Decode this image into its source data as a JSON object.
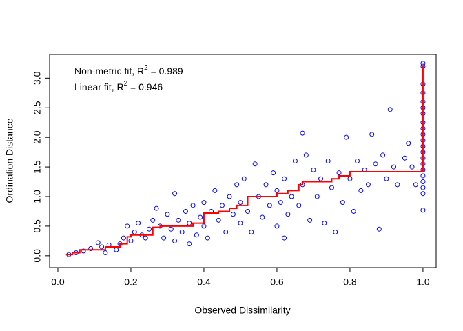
{
  "chart_data": {
    "type": "scatter",
    "xlabel": "Observed Dissimilarity",
    "ylabel": "Ordination Distance",
    "annotations": [
      {
        "text": "Non-metric fit, R",
        "superscript": "2",
        "rest": " = 0.989"
      },
      {
        "text": "Linear fit, R",
        "superscript": "2",
        "rest": " = 0.946"
      }
    ],
    "xlim": [
      -0.0226,
      1.036
    ],
    "ylim": [
      -0.2,
      3.4
    ],
    "xticks": [
      {
        "value": 0,
        "label": "0.0"
      },
      0.2,
      0.4,
      0.6,
      0.8,
      {
        "value": 1,
        "label": "1.0"
      }
    ],
    "yticks": [
      {
        "value": 0,
        "label": "0.0"
      },
      0.5,
      {
        "value": 1,
        "label": "1.0"
      },
      1.5,
      {
        "value": 2,
        "label": "2.0"
      },
      2.5,
      {
        "value": 3,
        "label": "3.0"
      }
    ],
    "grid": false,
    "series": [
      {
        "color": "#0000ff",
        "marker": "circle",
        "x": [
          0.03,
          0.05,
          0.07,
          0.09,
          0.11,
          0.12,
          0.13,
          0.14,
          0.16,
          0.17,
          0.18,
          0.19,
          0.2,
          0.21,
          0.22,
          0.23,
          0.24,
          0.25,
          0.26,
          0.27,
          0.28,
          0.29,
          0.3,
          0.31,
          0.32,
          0.32,
          0.33,
          0.34,
          0.35,
          0.36,
          0.36,
          0.37,
          0.38,
          0.39,
          0.4,
          0.4,
          0.41,
          0.42,
          0.43,
          0.44,
          0.45,
          0.46,
          0.47,
          0.48,
          0.49,
          0.5,
          0.5,
          0.51,
          0.52,
          0.53,
          0.54,
          0.55,
          0.56,
          0.57,
          0.58,
          0.59,
          0.6,
          0.6,
          0.61,
          0.62,
          0.62,
          0.63,
          0.64,
          0.65,
          0.66,
          0.67,
          0.67,
          0.68,
          0.69,
          0.7,
          0.71,
          0.72,
          0.73,
          0.74,
          0.75,
          0.76,
          0.77,
          0.78,
          0.79,
          0.8,
          0.81,
          0.82,
          0.83,
          0.84,
          0.85,
          0.86,
          0.87,
          0.88,
          0.89,
          0.9,
          0.91,
          0.92,
          0.93,
          0.95,
          0.96,
          0.97,
          0.98,
          1,
          1,
          1,
          1,
          1,
          1,
          1,
          1,
          1,
          1,
          1,
          1,
          1,
          1,
          1,
          1,
          1,
          1,
          1,
          1,
          1
        ],
        "values": [
          0.02,
          0.05,
          0.08,
          0.12,
          0.22,
          0.15,
          0.05,
          0.18,
          0.1,
          0.2,
          0.3,
          0.5,
          0.25,
          0.4,
          0.55,
          0.35,
          0.3,
          0.45,
          0.6,
          0.8,
          0.5,
          0.3,
          0.7,
          0.45,
          1.05,
          0.25,
          0.6,
          0.4,
          0.75,
          0.2,
          0.55,
          0.85,
          0.35,
          0.65,
          0.9,
          0.5,
          0.3,
          0.75,
          1.1,
          0.6,
          0.85,
          0.4,
          1.0,
          0.7,
          1.2,
          0.55,
          0.9,
          1.3,
          0.75,
          0.4,
          1.55,
          1.0,
          0.65,
          1.2,
          0.85,
          1.4,
          0.5,
          1.1,
          0.9,
          0.3,
          1.3,
          0.7,
          1.0,
          1.6,
          0.85,
          2.07,
          1.2,
          1.7,
          0.6,
          1.45,
          1.0,
          1.3,
          0.55,
          1.6,
          1.15,
          0.4,
          1.4,
          0.9,
          2.0,
          1.3,
          0.75,
          1.6,
          1.1,
          1.45,
          1.2,
          2.05,
          1.55,
          0.45,
          1.7,
          1.3,
          2.47,
          1.5,
          1.2,
          1.65,
          1.9,
          1.5,
          1.2,
          0.77,
          1.05,
          1.15,
          1.25,
          1.35,
          1.45,
          1.55,
          1.65,
          1.75,
          1.85,
          1.95,
          2.05,
          2.15,
          2.25,
          2.4,
          2.5,
          2.6,
          2.75,
          2.9,
          3.2,
          3.25
        ]
      },
      {
        "color": "#ff0000",
        "line": "step",
        "x": [
          0.022,
          0.04,
          0.06,
          0.13,
          0.17,
          0.19,
          0.2,
          0.26,
          0.28,
          0.37,
          0.4,
          0.44,
          0.47,
          0.49,
          0.52,
          0.6,
          0.63,
          0.66,
          0.67,
          0.75,
          0.77,
          0.8,
          1,
          1
        ],
        "values": [
          0.02,
          0.05,
          0.1,
          0.15,
          0.2,
          0.32,
          0.35,
          0.48,
          0.5,
          0.55,
          0.72,
          0.75,
          0.8,
          0.85,
          1.0,
          1.05,
          1.1,
          1.2,
          1.25,
          1.3,
          1.35,
          1.42,
          1.42,
          3.22
        ]
      }
    ]
  }
}
